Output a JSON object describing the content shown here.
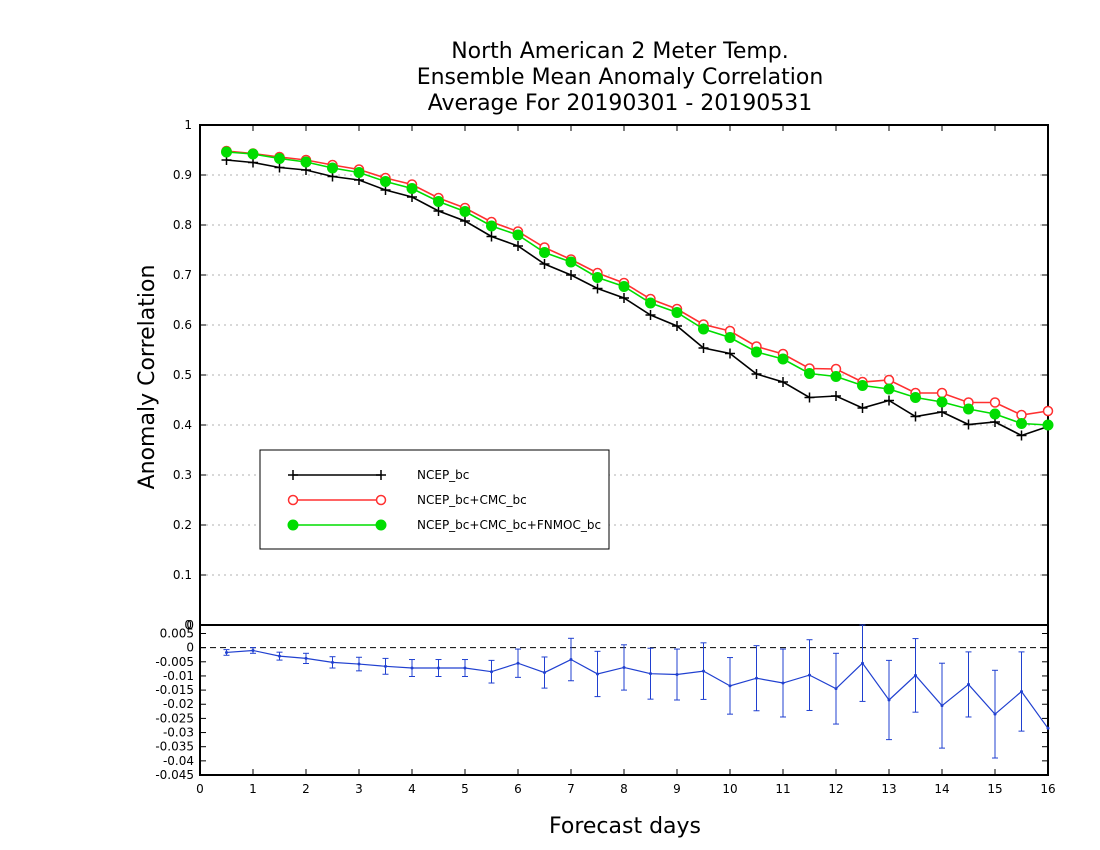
{
  "colors": {
    "background": "#ffffff",
    "axis": "#000000",
    "grid": "#b0b0b0",
    "series_ncep": "#000000",
    "series_cmc": "#ff3030",
    "series_fnmoc": "#00dd00",
    "diff": "#2040d0"
  },
  "chart_data": [
    {
      "type": "line",
      "title": [
        "North American 2 Meter Temp.",
        "Ensemble Mean Anomaly Correlation",
        "Average For 20190301 - 20190531"
      ],
      "xlabel": "",
      "ylabel": "Anomaly Correlation",
      "xlim": [
        0,
        16
      ],
      "ylim": [
        0,
        1
      ],
      "yticks": [
        "0",
        "0.1",
        "0.2",
        "0.3",
        "0.4",
        "0.5",
        "0.6",
        "0.7",
        "0.8",
        "0.9",
        "1"
      ],
      "grid": true,
      "legend_placement": "lower-left",
      "x": [
        0.5,
        1,
        1.5,
        2,
        2.5,
        3,
        3.5,
        4,
        4.5,
        5,
        5.5,
        6,
        6.5,
        7,
        7.5,
        8,
        8.5,
        9,
        9.5,
        10,
        10.5,
        11,
        11.5,
        12,
        12.5,
        13,
        13.5,
        14,
        14.5,
        15,
        15.5,
        16
      ],
      "series": [
        {
          "name": "NCEP_bc",
          "marker": "plus",
          "values": [
            0.93,
            0.925,
            0.915,
            0.91,
            0.897,
            0.89,
            0.87,
            0.856,
            0.828,
            0.808,
            0.777,
            0.758,
            0.722,
            0.7,
            0.673,
            0.654,
            0.62,
            0.598,
            0.554,
            0.543,
            0.502,
            0.486,
            0.455,
            0.458,
            0.434,
            0.449,
            0.417,
            0.426,
            0.401,
            0.406,
            0.379,
            0.397
          ]
        },
        {
          "name": "NCEP_bc+CMC_bc",
          "marker": "open-circle",
          "values": [
            0.948,
            0.943,
            0.936,
            0.93,
            0.92,
            0.911,
            0.894,
            0.881,
            0.854,
            0.834,
            0.806,
            0.787,
            0.755,
            0.731,
            0.704,
            0.684,
            0.652,
            0.632,
            0.601,
            0.588,
            0.557,
            0.542,
            0.513,
            0.512,
            0.486,
            0.49,
            0.464,
            0.464,
            0.445,
            0.445,
            0.42,
            0.428
          ]
        },
        {
          "name": "NCEP_bc+CMC_bc+FNMOC_bc",
          "marker": "filled-circle",
          "values": [
            0.946,
            0.942,
            0.933,
            0.926,
            0.914,
            0.905,
            0.887,
            0.873,
            0.847,
            0.827,
            0.798,
            0.78,
            0.745,
            0.726,
            0.695,
            0.677,
            0.644,
            0.625,
            0.592,
            0.575,
            0.546,
            0.532,
            0.503,
            0.497,
            0.479,
            0.472,
            0.455,
            0.446,
            0.432,
            0.422,
            0.403,
            0.4
          ]
        }
      ]
    },
    {
      "type": "line",
      "title": "",
      "xlabel": "Forecast days",
      "ylabel": "",
      "xlim": [
        0,
        16
      ],
      "ylim": [
        -0.045,
        0.008
      ],
      "xticks": [
        "0",
        "1",
        "2",
        "3",
        "4",
        "5",
        "6",
        "7",
        "8",
        "9",
        "10",
        "11",
        "12",
        "13",
        "14",
        "15",
        "16"
      ],
      "yticks": [
        "0.005",
        "0",
        "-0.005",
        "-0.01",
        "-0.015",
        "-0.02",
        "-0.025",
        "-0.03",
        "-0.035",
        "-0.04",
        "-0.045"
      ],
      "top_tick_label": "0",
      "zero_line": true,
      "error_bars": true,
      "x": [
        0.5,
        1,
        1.5,
        2,
        2.5,
        3,
        3.5,
        4,
        4.5,
        5,
        5.5,
        6,
        6.5,
        7,
        7.5,
        8,
        8.5,
        9,
        9.5,
        10,
        10.5,
        11,
        11.5,
        12,
        12.5,
        13,
        13.5,
        14,
        14.5,
        15,
        15.5,
        16
      ],
      "values": [
        -0.0017,
        -0.001,
        -0.003,
        -0.0038,
        -0.0052,
        -0.0058,
        -0.0066,
        -0.0072,
        -0.0072,
        -0.0072,
        -0.0085,
        -0.0055,
        -0.0088,
        -0.0042,
        -0.0093,
        -0.007,
        -0.0092,
        -0.0095,
        -0.0083,
        -0.0135,
        -0.0108,
        -0.0125,
        -0.0097,
        -0.0145,
        -0.0055,
        -0.0185,
        -0.0098,
        -0.0205,
        -0.013,
        -0.0235,
        -0.0155,
        -0.0285
      ],
      "errors": [
        0.001,
        0.001,
        0.0014,
        0.0018,
        0.002,
        0.0024,
        0.0028,
        0.003,
        0.003,
        0.003,
        0.004,
        0.005,
        0.0055,
        0.0075,
        0.008,
        0.008,
        0.009,
        0.009,
        0.01,
        0.01,
        0.0115,
        0.012,
        0.0125,
        0.0125,
        0.0135,
        0.014,
        0.013,
        0.015,
        0.0115,
        0.0155,
        0.014,
        0.0
      ]
    }
  ]
}
